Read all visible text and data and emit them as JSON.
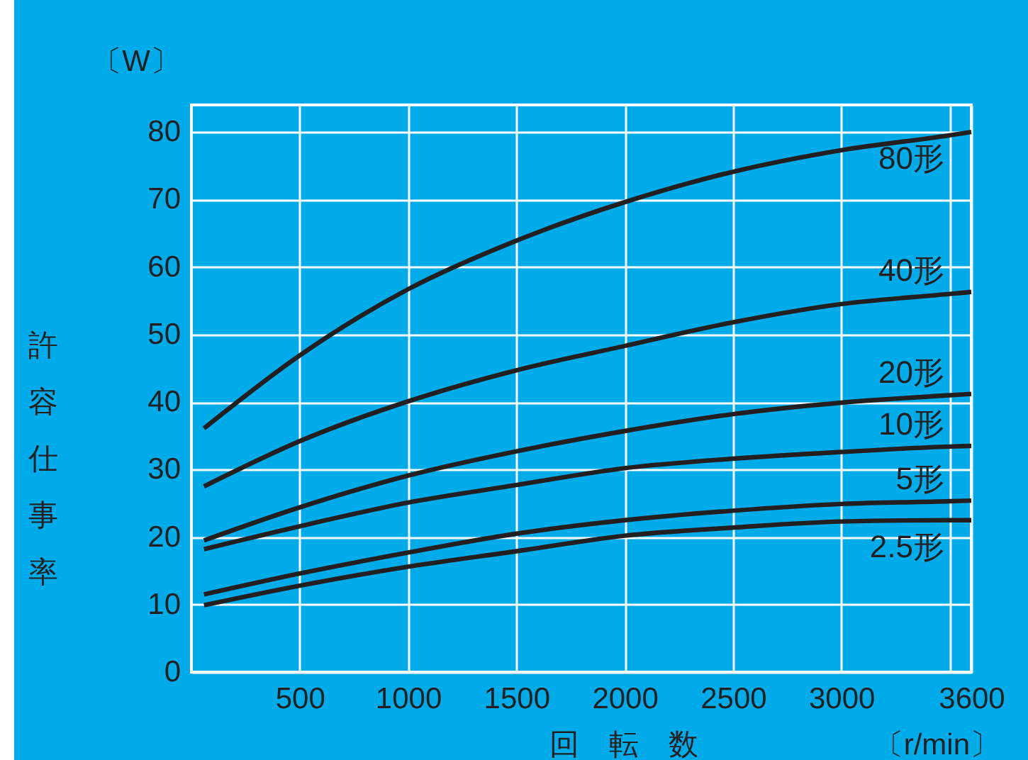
{
  "chart_data": {
    "type": "line",
    "xlabel": "回　転　数",
    "ylabel": "許容仕事率",
    "annotations": [
      "〔W〕",
      "〔r/min〕"
    ],
    "x": [
      58,
      500,
      1000,
      1500,
      2000,
      2500,
      3000,
      3500,
      3600
    ],
    "series": [
      {
        "name": "80形",
        "color": "#231f20",
        "values": [
          36.1,
          46.9,
          56.7,
          63.9,
          69.6,
          74.1,
          77.3,
          79.5,
          80
        ]
      },
      {
        "name": "40形",
        "color": "#231f20",
        "values": [
          27.5,
          34.2,
          40.1,
          44.7,
          48.3,
          51.8,
          54.5,
          56.0,
          56.3
        ]
      },
      {
        "name": "20形",
        "color": "#231f20",
        "values": [
          19.5,
          24.4,
          29.1,
          32.7,
          35.7,
          38.2,
          39.9,
          41.0,
          41.2
        ]
      },
      {
        "name": "10形",
        "color": "#231f20",
        "values": [
          18.2,
          21.6,
          25.1,
          27.7,
          30.2,
          31.6,
          32.6,
          33.4,
          33.5
        ]
      },
      {
        "name": "5形",
        "color": "#231f20",
        "values": [
          11.5,
          14.6,
          17.7,
          20.5,
          22.5,
          23.9,
          24.9,
          25.3,
          25.4
        ]
      },
      {
        "name": "2.5形",
        "color": "#231f20",
        "values": [
          9.9,
          12.8,
          15.6,
          17.9,
          20.2,
          21.4,
          22.3,
          22.5,
          22.5
        ]
      }
    ],
    "xlim": [
      0,
      3600
    ],
    "xticks": [
      500,
      1000,
      1500,
      2000,
      2500,
      3000,
      {
        "value": 3500,
        "label": null
      },
      3600
    ],
    "ylim": [
      0,
      84
    ],
    "yticks": [
      0,
      10,
      20,
      30,
      40,
      50,
      60,
      70,
      80
    ],
    "grid": true,
    "legend": false,
    "marker": "none",
    "line_style": "solid"
  }
}
